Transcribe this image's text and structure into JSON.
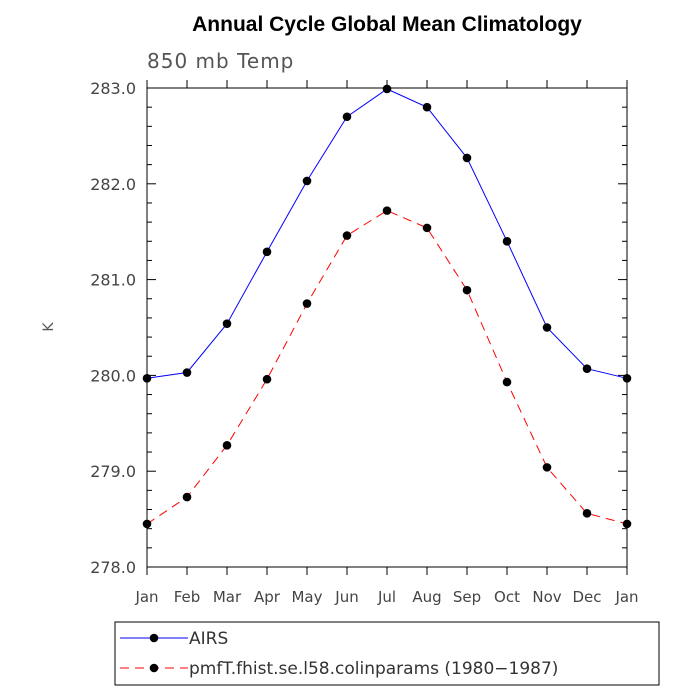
{
  "chart_data": {
    "type": "line",
    "title": "Annual Cycle Global Mean Climatology",
    "subtitle": "850 mb Temp",
    "xlabel": "",
    "ylabel": "K",
    "ylim": [
      278.0,
      283.0
    ],
    "yticks": [
      "278.0",
      "279.0",
      "280.0",
      "281.0",
      "282.0",
      "283.0"
    ],
    "categories": [
      "Jan",
      "Feb",
      "Mar",
      "Apr",
      "May",
      "Jun",
      "Jul",
      "Aug",
      "Sep",
      "Oct",
      "Nov",
      "Dec",
      "Jan"
    ],
    "grid": false,
    "legend_position": "bottom",
    "series": [
      {
        "name": "AIRS",
        "color": "#0000ff",
        "dash": "solid",
        "values": [
          279.97,
          280.03,
          280.54,
          281.29,
          282.03,
          282.7,
          282.99,
          282.8,
          282.27,
          281.4,
          280.5,
          280.07,
          279.97
        ]
      },
      {
        "name": "pmfT.fhist.se.l58.colinparams (1980−1987)",
        "color": "#ff0000",
        "dash": "dashed",
        "values": [
          278.45,
          278.73,
          279.27,
          279.96,
          280.75,
          281.46,
          281.72,
          281.54,
          280.89,
          279.93,
          279.04,
          278.56,
          278.45
        ]
      }
    ]
  }
}
